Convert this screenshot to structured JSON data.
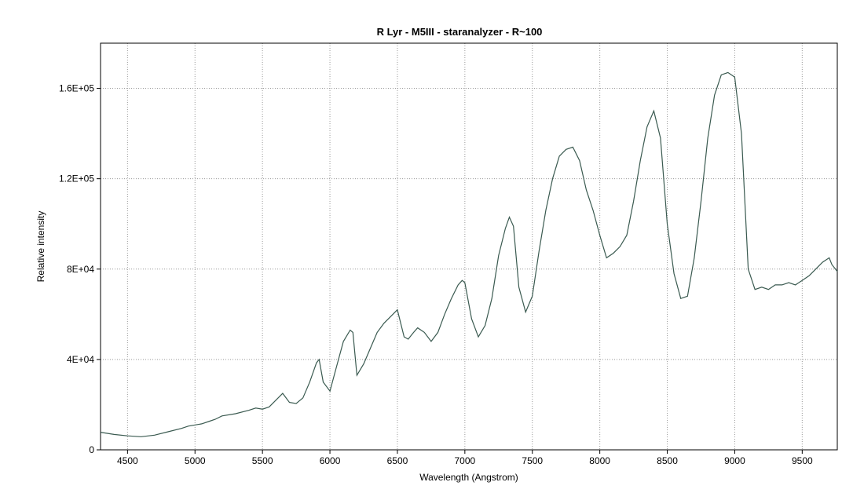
{
  "chart_data": {
    "type": "line",
    "title": "R Lyr - M5III - staranalyzer - R~100",
    "xlabel": "Wavelength (Angstrom)",
    "ylabel": "Relative intensity",
    "xlim": [
      4300,
      9760
    ],
    "ylim": [
      0,
      180000
    ],
    "x_ticks": [
      4500,
      5000,
      5500,
      6000,
      6500,
      7000,
      7500,
      8000,
      8500,
      9000,
      9500
    ],
    "x_tick_labels": [
      "4500",
      "5000",
      "5500",
      "6000",
      "6500",
      "7000",
      "7500",
      "8000",
      "8500",
      "9000",
      "9500"
    ],
    "y_ticks": [
      0,
      40000,
      80000,
      120000,
      160000
    ],
    "y_tick_labels": [
      "0",
      "4E+04",
      "8E+04",
      "1.2E+05",
      "1.6E+05"
    ],
    "grid": true,
    "line_color": "#3a5a50",
    "series": [
      {
        "x": [
          4300,
          4400,
          4500,
          4600,
          4700,
          4800,
          4900,
          4950,
          5000,
          5050,
          5100,
          5150,
          5200,
          5300,
          5400,
          5450,
          5500,
          5550,
          5600,
          5650,
          5700,
          5750,
          5800,
          5850,
          5900,
          5920,
          5950,
          6000,
          6050,
          6100,
          6150,
          6170,
          6200,
          6250,
          6300,
          6350,
          6400,
          6450,
          6500,
          6550,
          6580,
          6620,
          6650,
          6700,
          6750,
          6800,
          6850,
          6900,
          6950,
          6980,
          7000,
          7050,
          7100,
          7150,
          7200,
          7250,
          7300,
          7330,
          7360,
          7400,
          7450,
          7500,
          7550,
          7600,
          7650,
          7700,
          7750,
          7800,
          7850,
          7900,
          7950,
          8000,
          8050,
          8100,
          8150,
          8200,
          8250,
          8300,
          8350,
          8400,
          8450,
          8500,
          8550,
          8600,
          8650,
          8700,
          8750,
          8800,
          8850,
          8900,
          8950,
          9000,
          9050,
          9100,
          9150,
          9200,
          9250,
          9300,
          9350,
          9400,
          9450,
          9500,
          9550,
          9600,
          9650,
          9700,
          9720,
          9760
        ],
        "y": [
          7800,
          6800,
          6200,
          5800,
          6500,
          8000,
          9500,
          10500,
          11000,
          11500,
          12500,
          13500,
          15000,
          16000,
          17500,
          18500,
          18000,
          19000,
          22000,
          25000,
          21000,
          20500,
          23000,
          30000,
          38500,
          40000,
          30000,
          26000,
          37000,
          48000,
          53000,
          52000,
          33000,
          38000,
          45000,
          52000,
          56000,
          59000,
          62000,
          50000,
          49000,
          52000,
          54000,
          52000,
          48000,
          52000,
          60000,
          67000,
          73000,
          75000,
          74000,
          58000,
          50000,
          55000,
          67000,
          86000,
          98000,
          103000,
          99000,
          72000,
          61000,
          68000,
          88000,
          106000,
          120000,
          130000,
          133000,
          134000,
          128000,
          115000,
          106000,
          95000,
          85000,
          87000,
          90000,
          95000,
          110000,
          128000,
          143000,
          150000,
          138000,
          100000,
          78000,
          67000,
          68000,
          85000,
          110000,
          138000,
          157000,
          166000,
          167000,
          165000,
          140000,
          80000,
          71000,
          72000,
          71000,
          73000,
          73000,
          74000,
          73000,
          75000,
          77000,
          80000,
          83000,
          85000,
          82000,
          79000
        ]
      }
    ]
  }
}
